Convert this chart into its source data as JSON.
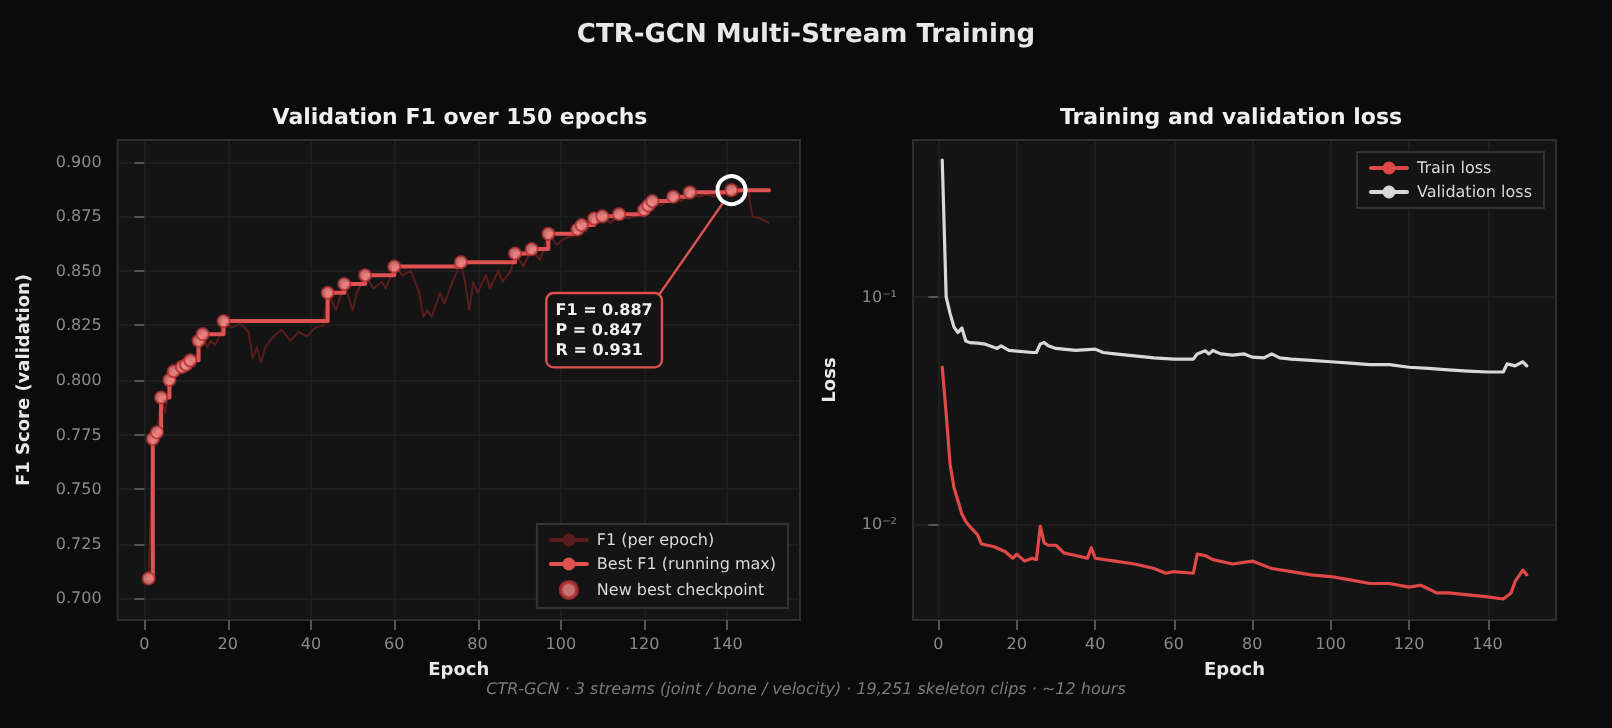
{
  "chart_data": [
    {
      "type": "line",
      "title": "Validation F1 over 150 epochs",
      "xlabel": "Epoch",
      "ylabel": "F1 Score (validation)",
      "xlim": [
        -6.45,
        157.45
      ],
      "xticks": [
        0,
        20,
        40,
        60,
        80,
        100,
        120,
        140
      ],
      "ylim": [
        0.69,
        0.91
      ],
      "yticks": [
        {
          "value": 0.7,
          "label": "0.700"
        },
        {
          "value": 0.725,
          "label": "0.725"
        },
        {
          "value": 0.75,
          "label": "0.750"
        },
        {
          "value": 0.775,
          "label": "0.775"
        },
        {
          "value": 0.8,
          "label": "0.800"
        },
        {
          "value": 0.825,
          "label": "0.825"
        },
        {
          "value": 0.85,
          "label": "0.850"
        },
        {
          "value": 0.875,
          "label": "0.875"
        },
        {
          "value": 0.9,
          "label": "0.900"
        }
      ],
      "grid": true,
      "legend": "bottom right",
      "series": [
        {
          "name": "F1 (per epoch)",
          "color": "#5a1c1c",
          "marker": "none",
          "x": [
            1,
            2,
            3,
            4,
            5,
            6,
            7,
            8,
            9,
            10,
            11,
            12,
            13,
            14,
            15,
            16,
            17,
            18,
            19,
            21,
            23,
            25,
            26,
            27,
            28,
            29,
            31,
            33,
            35,
            37,
            39,
            41,
            43,
            44,
            46,
            47,
            48,
            50,
            51,
            53,
            55,
            57,
            58,
            60,
            62,
            64,
            66,
            67,
            68,
            69,
            71,
            72,
            74,
            76,
            77,
            78,
            79,
            80,
            82,
            83,
            85,
            86,
            88,
            89,
            91,
            93,
            95,
            97,
            99,
            101,
            103,
            104,
            105,
            106,
            108,
            110,
            112,
            114,
            116,
            118,
            120,
            121,
            122,
            124,
            127,
            129,
            131,
            133,
            135,
            137,
            139,
            141,
            143,
            145,
            146,
            148,
            150
          ],
          "values": [
            0.709,
            0.773,
            0.776,
            0.792,
            0.785,
            0.8,
            0.804,
            0.802,
            0.806,
            0.807,
            0.809,
            0.806,
            0.818,
            0.821,
            0.815,
            0.818,
            0.816,
            0.82,
            0.827,
            0.824,
            0.826,
            0.822,
            0.81,
            0.815,
            0.808,
            0.815,
            0.82,
            0.823,
            0.818,
            0.822,
            0.82,
            0.824,
            0.825,
            0.84,
            0.832,
            0.838,
            0.844,
            0.832,
            0.84,
            0.848,
            0.842,
            0.845,
            0.842,
            0.852,
            0.848,
            0.85,
            0.84,
            0.829,
            0.832,
            0.829,
            0.84,
            0.835,
            0.845,
            0.854,
            0.845,
            0.832,
            0.845,
            0.84,
            0.848,
            0.842,
            0.85,
            0.845,
            0.85,
            0.858,
            0.852,
            0.86,
            0.855,
            0.867,
            0.862,
            0.865,
            0.866,
            0.869,
            0.871,
            0.868,
            0.874,
            0.875,
            0.872,
            0.876,
            0.874,
            0.875,
            0.878,
            0.88,
            0.882,
            0.88,
            0.884,
            0.882,
            0.886,
            0.884,
            0.885,
            0.884,
            0.885,
            0.887,
            0.886,
            0.887,
            0.875,
            0.874,
            0.872
          ]
        },
        {
          "name": "Best F1 (running max)",
          "type": "step",
          "color": "#e05252",
          "marker": "none",
          "x": [
            1,
            2,
            3,
            4,
            6,
            7,
            9,
            10,
            11,
            13,
            14,
            19,
            44,
            48,
            53,
            60,
            76,
            89,
            93,
            97,
            104,
            105,
            108,
            110,
            114,
            120,
            121,
            122,
            127,
            131,
            141,
            150
          ],
          "values": [
            0.709,
            0.773,
            0.776,
            0.792,
            0.8,
            0.804,
            0.806,
            0.807,
            0.809,
            0.818,
            0.821,
            0.827,
            0.84,
            0.844,
            0.848,
            0.852,
            0.854,
            0.858,
            0.86,
            0.867,
            0.869,
            0.871,
            0.874,
            0.875,
            0.876,
            0.878,
            0.88,
            0.882,
            0.884,
            0.886,
            0.887,
            0.887
          ]
        },
        {
          "name": "New best checkpoint",
          "type": "scatter",
          "color": "#f08a8a",
          "marker": "circle",
          "x": [
            1,
            2,
            3,
            4,
            6,
            7,
            9,
            10,
            11,
            13,
            14,
            19,
            44,
            48,
            53,
            60,
            76,
            89,
            93,
            97,
            104,
            105,
            108,
            110,
            114,
            120,
            121,
            122,
            127,
            131,
            141
          ],
          "values": [
            0.709,
            0.773,
            0.776,
            0.792,
            0.8,
            0.804,
            0.806,
            0.807,
            0.809,
            0.818,
            0.821,
            0.827,
            0.84,
            0.844,
            0.848,
            0.852,
            0.854,
            0.858,
            0.86,
            0.867,
            0.869,
            0.871,
            0.874,
            0.875,
            0.876,
            0.878,
            0.88,
            0.882,
            0.884,
            0.886,
            0.887
          ]
        }
      ],
      "annotations": [
        "CTR-GCN Multi-Stream Training",
        {
          "text": "F1 = 0.887\nP = 0.847\nR = 0.931",
          "x": 141,
          "y": 0.887
        }
      ]
    },
    {
      "type": "line",
      "title": "Training and validation loss",
      "xlabel": "Epoch",
      "ylabel": "Loss",
      "log": "y",
      "xlim": [
        -6.45,
        157.45
      ],
      "xticks": [
        0,
        20,
        40,
        60,
        80,
        100,
        120,
        140
      ],
      "ylim": [
        0.0038,
        0.49
      ],
      "yticks": [
        {
          "value": 0.01,
          "label": "10⁻²"
        },
        {
          "value": 0.1,
          "label": "10⁻¹"
        }
      ],
      "grid": true,
      "legend": "top right",
      "marker": "none",
      "series": [
        {
          "name": "Train loss",
          "color": "#e04848",
          "x": [
            1,
            2,
            3,
            4,
            5,
            6,
            7,
            8,
            10,
            11,
            14,
            17,
            19,
            20,
            22,
            24,
            25,
            26,
            27,
            28,
            30,
            32,
            35,
            38,
            39,
            40,
            45,
            50,
            55,
            58,
            60,
            65,
            66,
            68,
            70,
            75,
            80,
            85,
            90,
            95,
            100,
            105,
            110,
            115,
            120,
            123,
            127,
            130,
            135,
            140,
            144,
            146,
            147,
            149,
            150
          ],
          "values": [
            0.049,
            0.0306,
            0.0184,
            0.0145,
            0.0127,
            0.0111,
            0.0103,
            0.0098,
            0.009,
            0.0082,
            0.008,
            0.0076,
            0.0071,
            0.0074,
            0.0069,
            0.0071,
            0.007,
            0.0098,
            0.0083,
            0.0081,
            0.0081,
            0.0075,
            0.0073,
            0.0071,
            0.0079,
            0.0071,
            0.0069,
            0.0067,
            0.0064,
            0.0061,
            0.0062,
            0.0061,
            0.0074,
            0.0073,
            0.007,
            0.0067,
            0.0069,
            0.0064,
            0.0062,
            0.006,
            0.0059,
            0.0057,
            0.0055,
            0.0055,
            0.0053,
            0.0054,
            0.005,
            0.005,
            0.0049,
            0.0048,
            0.0047,
            0.005,
            0.0056,
            0.0063,
            0.006
          ]
        },
        {
          "name": "Validation loss",
          "color": "#d8d8d8",
          "x": [
            1,
            2,
            3,
            4,
            5,
            6,
            7,
            8,
            10,
            12,
            15,
            16,
            18,
            20,
            24,
            25,
            26,
            27,
            28,
            30,
            35,
            40,
            42,
            45,
            50,
            55,
            60,
            65,
            66,
            68,
            69,
            70,
            72,
            75,
            78,
            80,
            83,
            85,
            87,
            90,
            95,
            100,
            105,
            110,
            115,
            120,
            125,
            130,
            135,
            140,
            144,
            145,
            147,
            149,
            150
          ],
          "values": [
            0.4,
            0.1,
            0.0845,
            0.0737,
            0.0698,
            0.073,
            0.064,
            0.063,
            0.0627,
            0.062,
            0.0594,
            0.061,
            0.0582,
            0.0578,
            0.057,
            0.057,
            0.0622,
            0.0631,
            0.061,
            0.0594,
            0.0582,
            0.059,
            0.057,
            0.0562,
            0.0551,
            0.054,
            0.0533,
            0.0533,
            0.0562,
            0.058,
            0.0562,
            0.0582,
            0.0562,
            0.0555,
            0.0562,
            0.0544,
            0.054,
            0.0562,
            0.054,
            0.0533,
            0.0526,
            0.0519,
            0.0512,
            0.0504,
            0.0504,
            0.0491,
            0.0485,
            0.0478,
            0.0472,
            0.0468,
            0.0468,
            0.0508,
            0.0498,
            0.0519,
            0.0498
          ]
        }
      ],
      "annotations": [
        "CTR-GCN  ·  3 streams (joint / bone / velocity)  ·  19,251 skeleton clips  ·  ~12 hours"
      ]
    }
  ]
}
